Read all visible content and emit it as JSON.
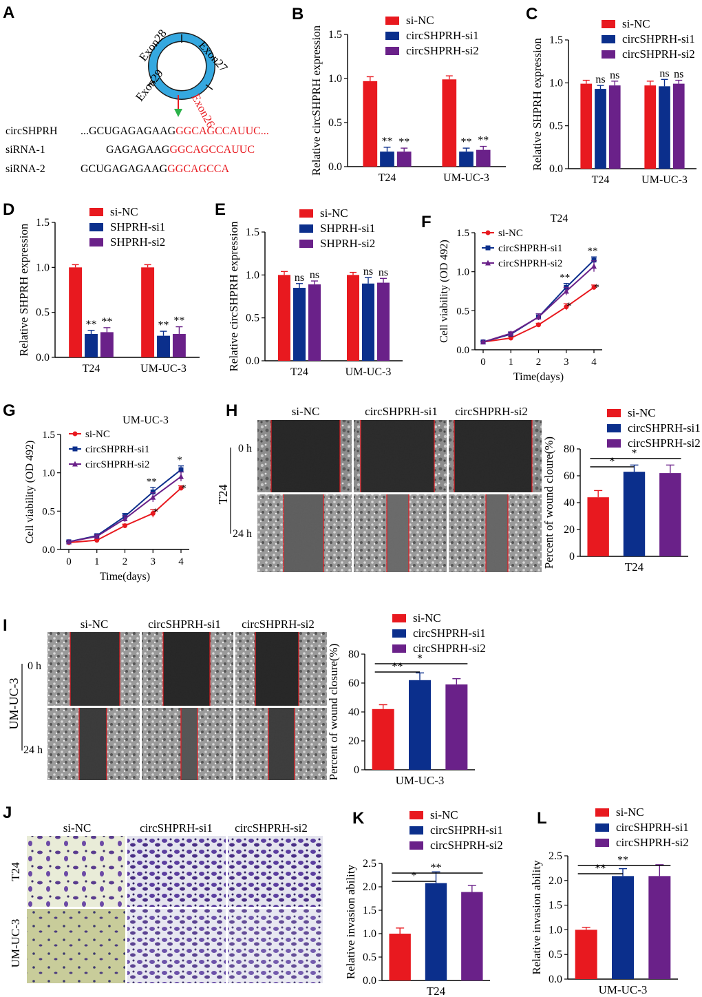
{
  "colors": {
    "red": "#e8191f",
    "blue": "#0b2f8c",
    "purple": "#6a2189",
    "ring": "#35a8e0",
    "seq_red": "#e8191f",
    "arrow_red": "#e8191f",
    "arrow_green": "#2bb24a"
  },
  "panelA": {
    "label": "A",
    "exons": [
      "Exon28",
      "Exon27",
      "Exon29",
      "Exon26"
    ],
    "rows": [
      {
        "name": "circSHPRH",
        "black": "...GCUGAGAGAAG",
        "red": "GGCAGCCAUUC..."
      },
      {
        "name": "siRNA-1",
        "black": "GAGAGAAG",
        "red": "GGCAGCCAUUC"
      },
      {
        "name": "siRNA-2",
        "black": "GCUGAGAGAAG",
        "red": "GGCAGCCA"
      }
    ]
  },
  "chart_data": [
    {
      "panel": "B",
      "type": "bar",
      "title": "",
      "ylabel": "Relative circSHPRH expression",
      "ylim": [
        0,
        1.5
      ],
      "yticks": [
        0.0,
        0.5,
        1.0,
        1.5
      ],
      "categories": [
        "T24",
        "UM-UC-3"
      ],
      "series": [
        {
          "name": "si-NC",
          "values": [
            0.97,
            0.99
          ],
          "errors": [
            0.05,
            0.04
          ],
          "sig": [
            "",
            ""
          ]
        },
        {
          "name": "circSHPRH-si1",
          "values": [
            0.17,
            0.17
          ],
          "errors": [
            0.05,
            0.04
          ],
          "sig": [
            "**",
            "**"
          ]
        },
        {
          "name": "circSHPRH-si2",
          "values": [
            0.17,
            0.19
          ],
          "errors": [
            0.04,
            0.04
          ],
          "sig": [
            "**",
            "**"
          ]
        }
      ]
    },
    {
      "panel": "C",
      "type": "bar",
      "title": "",
      "ylabel": "Relative SHPRH expression",
      "ylim": [
        0,
        1.5
      ],
      "yticks": [
        0.0,
        0.5,
        1.0,
        1.5
      ],
      "categories": [
        "T24",
        "UM-UC-3"
      ],
      "series": [
        {
          "name": "si-NC",
          "values": [
            0.99,
            0.97
          ],
          "errors": [
            0.04,
            0.05
          ],
          "sig": [
            "",
            ""
          ]
        },
        {
          "name": "circSHPRH-si1",
          "values": [
            0.93,
            0.96
          ],
          "errors": [
            0.04,
            0.08
          ],
          "sig": [
            "ns",
            "ns"
          ]
        },
        {
          "name": "circSHPRH-si2",
          "values": [
            0.97,
            0.99
          ],
          "errors": [
            0.05,
            0.04
          ],
          "sig": [
            "ns",
            "ns"
          ]
        }
      ]
    },
    {
      "panel": "D",
      "type": "bar",
      "title": "",
      "ylabel": "Relative SHPRH expression",
      "ylim": [
        0,
        1.5
      ],
      "yticks": [
        0.0,
        0.5,
        1.0,
        1.5
      ],
      "categories": [
        "T24",
        "UM-UC-3"
      ],
      "series": [
        {
          "name": "si-NC",
          "values": [
            1.0,
            1.0
          ],
          "errors": [
            0.03,
            0.03
          ],
          "sig": [
            "",
            ""
          ]
        },
        {
          "name": "SHPRH-si1",
          "values": [
            0.26,
            0.24
          ],
          "errors": [
            0.04,
            0.05
          ],
          "sig": [
            "**",
            "**"
          ]
        },
        {
          "name": "SHPRH-si2",
          "values": [
            0.28,
            0.26
          ],
          "errors": [
            0.05,
            0.08
          ],
          "sig": [
            "**",
            "**"
          ]
        }
      ]
    },
    {
      "panel": "E",
      "type": "bar",
      "title": "",
      "ylabel": "Relative circSHPRH expression",
      "ylim": [
        0,
        1.5
      ],
      "yticks": [
        0.0,
        0.5,
        1.0,
        1.5
      ],
      "categories": [
        "T24",
        "UM-UC-3"
      ],
      "series": [
        {
          "name": "si-NC",
          "values": [
            1.0,
            1.0
          ],
          "errors": [
            0.04,
            0.03
          ],
          "sig": [
            "",
            ""
          ]
        },
        {
          "name": "SHPRH-si1",
          "values": [
            0.85,
            0.9
          ],
          "errors": [
            0.05,
            0.07
          ],
          "sig": [
            "ns",
            "ns"
          ]
        },
        {
          "name": "SHPRH-si2",
          "values": [
            0.89,
            0.91
          ],
          "errors": [
            0.04,
            0.05
          ],
          "sig": [
            "ns",
            "ns"
          ]
        }
      ]
    },
    {
      "panel": "F",
      "type": "line",
      "title": "T24",
      "xlabel": "Time(days)",
      "ylabel": "Cell viability (OD 492)",
      "ylim": [
        0,
        1.5
      ],
      "yticks": [
        0.0,
        0.5,
        1.0,
        1.5
      ],
      "x": [
        0,
        1,
        2,
        3,
        4
      ],
      "series": [
        {
          "name": "si-NC",
          "values": [
            0.1,
            0.15,
            0.32,
            0.55,
            0.8
          ],
          "errors": [
            0.01,
            0.02,
            0.02,
            0.04,
            0.03
          ],
          "sig": [
            "",
            "",
            "",
            "*",
            "*"
          ]
        },
        {
          "name": "circSHPRH-si1",
          "values": [
            0.1,
            0.2,
            0.42,
            0.8,
            1.15
          ],
          "errors": [
            0.01,
            0.02,
            0.04,
            0.05,
            0.04
          ],
          "sig": [
            "",
            "",
            "",
            "**",
            "**"
          ]
        },
        {
          "name": "circSHPRH-si2",
          "values": [
            0.1,
            0.21,
            0.42,
            0.75,
            1.07
          ],
          "errors": [
            0.01,
            0.02,
            0.04,
            0.05,
            0.07
          ],
          "sig": [
            "",
            "",
            "",
            "",
            ""
          ]
        }
      ]
    },
    {
      "panel": "G",
      "type": "line",
      "title": "UM-UC-3",
      "xlabel": "Time(days)",
      "ylabel": "Cell viability (OD 492)",
      "ylim": [
        0,
        1.5
      ],
      "yticks": [
        0.0,
        0.5,
        1.0,
        1.5
      ],
      "x": [
        0,
        1,
        2,
        3,
        4
      ],
      "series": [
        {
          "name": "si-NC",
          "values": [
            0.09,
            0.12,
            0.31,
            0.47,
            0.8
          ],
          "errors": [
            0.01,
            0.01,
            0.02,
            0.05,
            0.03
          ],
          "sig": [
            "",
            "",
            "",
            "*",
            "*"
          ]
        },
        {
          "name": "circSHPRH-si1",
          "values": [
            0.1,
            0.18,
            0.43,
            0.75,
            1.04
          ],
          "errors": [
            0.01,
            0.02,
            0.04,
            0.06,
            0.05
          ],
          "sig": [
            "",
            "",
            "",
            "**",
            "*"
          ]
        },
        {
          "name": "circSHPRH-si2",
          "values": [
            0.1,
            0.17,
            0.4,
            0.68,
            0.95
          ],
          "errors": [
            0.01,
            0.02,
            0.04,
            0.06,
            0.06
          ],
          "sig": [
            "",
            "",
            "",
            "",
            ""
          ]
        }
      ]
    },
    {
      "panel": "H",
      "type": "bar",
      "title": "",
      "xlabel": "T24",
      "ylabel": "Percent of wound cloure(%)",
      "ylim": [
        0,
        80
      ],
      "yticks": [
        0,
        20,
        40,
        60,
        80
      ],
      "categories": [
        "si-NC",
        "circSHPRH-si1",
        "circSHPRH-si2"
      ],
      "values": [
        44,
        63,
        62
      ],
      "errors": [
        5,
        5,
        6
      ],
      "brackets": [
        {
          "text": "*"
        },
        {
          "text": "*"
        }
      ]
    },
    {
      "panel": "I",
      "type": "bar",
      "title": "",
      "xlabel": "UM-UC-3",
      "ylabel": "Percent of wound closure(%)",
      "ylim": [
        0,
        80
      ],
      "yticks": [
        0,
        20,
        40,
        60,
        80
      ],
      "categories": [
        "si-NC",
        "circSHPRH-si1",
        "circSHPRH-si2"
      ],
      "values": [
        42,
        62,
        59
      ],
      "errors": [
        3,
        5,
        4
      ],
      "brackets": [
        {
          "text": "**"
        },
        {
          "text": "*"
        }
      ]
    },
    {
      "panel": "K",
      "type": "bar",
      "title": "",
      "xlabel": "T24",
      "ylabel": "Relative invasion ability",
      "ylim": [
        0,
        2.5
      ],
      "yticks": [
        0.0,
        0.5,
        1.0,
        1.5,
        2.0,
        2.5
      ],
      "categories": [
        "si-NC",
        "circSHPRH-si1",
        "circSHPRH-si2"
      ],
      "values": [
        1.0,
        2.08,
        1.89
      ],
      "errors": [
        0.12,
        0.24,
        0.14
      ],
      "brackets": [
        {
          "text": "*"
        },
        {
          "text": "**"
        }
      ]
    },
    {
      "panel": "L",
      "type": "bar",
      "title": "",
      "xlabel": "UM-UC-3",
      "ylabel": "Relative invasion ability",
      "ylim": [
        0,
        2.5
      ],
      "yticks": [
        0.0,
        0.5,
        1.0,
        1.5,
        2.0,
        2.5
      ],
      "categories": [
        "si-NC",
        "circSHPRH-si1",
        "circSHPRH-si2"
      ],
      "values": [
        1.0,
        2.09,
        2.09
      ],
      "errors": [
        0.05,
        0.15,
        0.23
      ],
      "brackets": [
        {
          "text": "**"
        },
        {
          "text": "**"
        }
      ]
    }
  ],
  "images": {
    "H": {
      "label": "H",
      "cols": [
        "si-NC",
        "circSHPRH-si1",
        "circSHPRH-si2"
      ],
      "line": "T24",
      "rows": [
        "0 h",
        "24 h"
      ]
    },
    "I": {
      "label": "I",
      "cols": [
        "si-NC",
        "circSHPRH-si1",
        "circSHPRH-si2"
      ],
      "line": "UM-UC-3",
      "rows": [
        "0 h",
        "24 h"
      ]
    },
    "J": {
      "label": "J",
      "cols": [
        "si-NC",
        "circSHPRH-si1",
        "circSHPRH-si2"
      ],
      "rows": [
        "T24",
        "UM-UC-3"
      ]
    }
  }
}
